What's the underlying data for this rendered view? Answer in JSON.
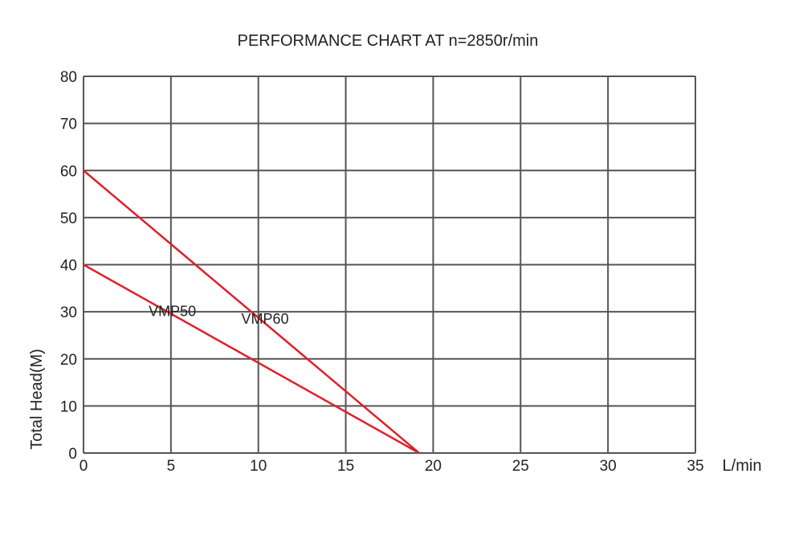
{
  "chart_data": {
    "type": "line",
    "title": "PERFORMANCE CHART AT n=2850r/min",
    "xlabel": "L/min",
    "ylabel": "Total Head(M)",
    "xlim": [
      0,
      35
    ],
    "ylim": [
      0,
      80
    ],
    "xticks": [
      "0",
      "5",
      "10",
      "15",
      "20",
      "25",
      "30",
      "35"
    ],
    "yticks": [
      "0",
      "10",
      "20",
      "30",
      "40",
      "50",
      "60",
      "70",
      "80"
    ],
    "grid": true,
    "series": [
      {
        "name": "VMP50",
        "x": [
          0,
          19.2
        ],
        "y": [
          40,
          0
        ],
        "color": "#e0202a"
      },
      {
        "name": "VMP60",
        "x": [
          0,
          19.2
        ],
        "y": [
          60,
          0
        ],
        "color": "#e0202a"
      }
    ]
  }
}
